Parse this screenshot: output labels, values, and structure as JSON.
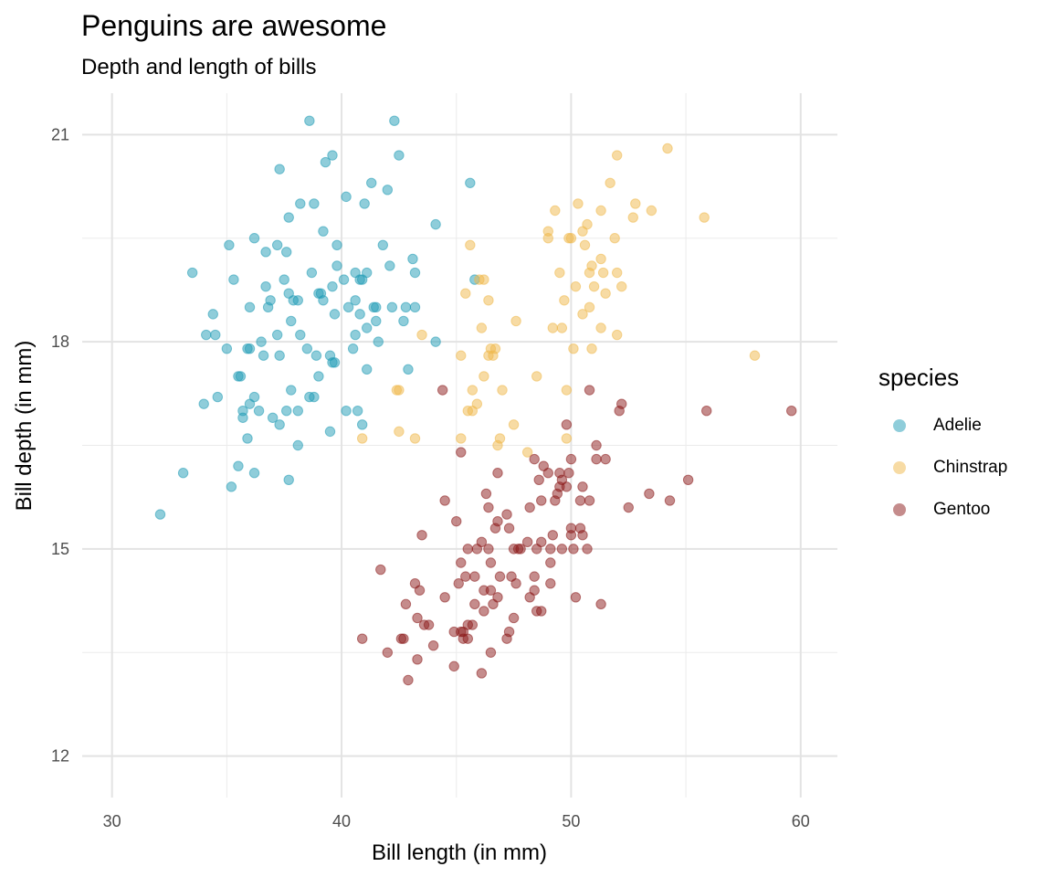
{
  "chart_data": {
    "type": "scatter",
    "title": "Penguins are awesome",
    "subtitle": "Depth and length of bills",
    "xlabel": "Bill length (in mm)",
    "ylabel": "Bill depth (in mm)",
    "xlim": [
      28.7,
      61.6
    ],
    "ylim": [
      11.4,
      21.6
    ],
    "xticks": [
      30,
      40,
      50,
      60
    ],
    "yticks": [
      12,
      15,
      18,
      21
    ],
    "xminor": [
      35,
      45,
      55
    ],
    "yminor": [
      13.5,
      16.5,
      19.5
    ],
    "legend_title": "species",
    "legend_position": "right",
    "series": [
      {
        "name": "Adelie",
        "color": "#1F9BB5",
        "points": [
          [
            32.1,
            15.5
          ],
          [
            33.1,
            16.1
          ],
          [
            33.5,
            19.0
          ],
          [
            34.0,
            17.1
          ],
          [
            34.1,
            18.1
          ],
          [
            34.4,
            18.4
          ],
          [
            34.5,
            18.1
          ],
          [
            34.6,
            17.2
          ],
          [
            35.0,
            17.9
          ],
          [
            35.1,
            19.4
          ],
          [
            35.2,
            15.9
          ],
          [
            35.3,
            18.9
          ],
          [
            35.5,
            17.5
          ],
          [
            35.5,
            16.2
          ],
          [
            35.6,
            17.5
          ],
          [
            35.7,
            17.0
          ],
          [
            35.7,
            16.9
          ],
          [
            35.9,
            16.6
          ],
          [
            35.9,
            17.9
          ],
          [
            36.0,
            18.5
          ],
          [
            36.0,
            17.9
          ],
          [
            36.0,
            17.1
          ],
          [
            36.2,
            17.2
          ],
          [
            36.2,
            16.1
          ],
          [
            36.2,
            19.5
          ],
          [
            36.4,
            17.0
          ],
          [
            36.5,
            18.0
          ],
          [
            36.6,
            17.8
          ],
          [
            36.7,
            18.8
          ],
          [
            36.7,
            19.3
          ],
          [
            36.8,
            18.5
          ],
          [
            36.9,
            18.6
          ],
          [
            37.0,
            16.9
          ],
          [
            37.2,
            18.1
          ],
          [
            37.2,
            19.4
          ],
          [
            37.3,
            20.5
          ],
          [
            37.3,
            17.8
          ],
          [
            37.3,
            16.8
          ],
          [
            37.5,
            18.9
          ],
          [
            37.6,
            19.3
          ],
          [
            37.6,
            17.0
          ],
          [
            37.7,
            18.7
          ],
          [
            37.7,
            16.0
          ],
          [
            37.7,
            19.8
          ],
          [
            37.8,
            18.3
          ],
          [
            37.8,
            17.3
          ],
          [
            37.9,
            18.6
          ],
          [
            38.1,
            18.6
          ],
          [
            38.1,
            17.0
          ],
          [
            38.1,
            16.5
          ],
          [
            38.2,
            18.1
          ],
          [
            38.2,
            20.0
          ],
          [
            38.5,
            17.9
          ],
          [
            38.6,
            21.2
          ],
          [
            38.6,
            17.2
          ],
          [
            38.7,
            19.0
          ],
          [
            38.8,
            20.0
          ],
          [
            38.8,
            17.2
          ],
          [
            38.9,
            17.8
          ],
          [
            39.0,
            17.5
          ],
          [
            39.0,
            18.7
          ],
          [
            39.1,
            18.7
          ],
          [
            39.2,
            19.6
          ],
          [
            39.2,
            18.6
          ],
          [
            39.3,
            20.6
          ],
          [
            39.5,
            16.7
          ],
          [
            39.5,
            17.8
          ],
          [
            39.6,
            17.7
          ],
          [
            39.6,
            18.8
          ],
          [
            39.6,
            20.7
          ],
          [
            39.7,
            17.7
          ],
          [
            39.7,
            18.4
          ],
          [
            39.8,
            19.1
          ],
          [
            40.1,
            18.9
          ],
          [
            40.2,
            17.0
          ],
          [
            40.2,
            20.1
          ],
          [
            40.3,
            18.5
          ],
          [
            40.5,
            17.9
          ],
          [
            40.6,
            18.6
          ],
          [
            40.6,
            19.0
          ],
          [
            40.7,
            17.0
          ],
          [
            40.8,
            18.4
          ],
          [
            40.8,
            18.9
          ],
          [
            40.9,
            16.8
          ],
          [
            40.9,
            18.9
          ],
          [
            41.0,
            20.0
          ],
          [
            41.1,
            17.6
          ],
          [
            41.1,
            18.2
          ],
          [
            41.1,
            19.0
          ],
          [
            41.4,
            18.5
          ],
          [
            41.5,
            18.3
          ],
          [
            41.6,
            18.0
          ],
          [
            41.8,
            19.4
          ],
          [
            42.0,
            20.2
          ],
          [
            42.1,
            19.1
          ],
          [
            42.2,
            18.5
          ],
          [
            42.3,
            21.2
          ],
          [
            42.5,
            20.7
          ],
          [
            42.7,
            18.3
          ],
          [
            42.8,
            18.5
          ],
          [
            42.9,
            17.6
          ],
          [
            43.1,
            19.2
          ],
          [
            43.2,
            19.0
          ],
          [
            43.2,
            18.5
          ],
          [
            44.1,
            18.0
          ],
          [
            44.1,
            19.7
          ],
          [
            45.6,
            20.3
          ],
          [
            45.8,
            18.9
          ],
          [
            41.3,
            20.3
          ],
          [
            39.8,
            19.4
          ],
          [
            41.5,
            18.5
          ],
          [
            40.6,
            18.1
          ]
        ]
      },
      {
        "name": "Chinstrap",
        "color": "#EFB84A",
        "points": [
          [
            40.9,
            16.6
          ],
          [
            42.4,
            17.3
          ],
          [
            42.5,
            17.3
          ],
          [
            42.5,
            16.7
          ],
          [
            43.2,
            16.6
          ],
          [
            43.5,
            18.1
          ],
          [
            45.2,
            17.8
          ],
          [
            45.2,
            16.6
          ],
          [
            45.4,
            18.7
          ],
          [
            45.5,
            17.0
          ],
          [
            45.6,
            19.4
          ],
          [
            45.7,
            17.0
          ],
          [
            45.7,
            17.3
          ],
          [
            45.9,
            17.1
          ],
          [
            46.0,
            18.9
          ],
          [
            46.1,
            18.2
          ],
          [
            46.2,
            17.5
          ],
          [
            46.4,
            17.8
          ],
          [
            46.4,
            18.6
          ],
          [
            46.5,
            17.9
          ],
          [
            46.6,
            17.8
          ],
          [
            46.7,
            17.9
          ],
          [
            46.8,
            16.5
          ],
          [
            46.9,
            16.6
          ],
          [
            47.0,
            17.3
          ],
          [
            47.5,
            16.8
          ],
          [
            47.6,
            18.3
          ],
          [
            48.1,
            16.4
          ],
          [
            48.5,
            17.5
          ],
          [
            49.0,
            19.5
          ],
          [
            49.0,
            19.6
          ],
          [
            49.2,
            18.2
          ],
          [
            49.3,
            19.9
          ],
          [
            49.5,
            19.0
          ],
          [
            49.6,
            18.2
          ],
          [
            49.7,
            18.6
          ],
          [
            49.8,
            17.3
          ],
          [
            49.9,
            19.5
          ],
          [
            50.0,
            19.5
          ],
          [
            50.1,
            17.9
          ],
          [
            50.2,
            18.8
          ],
          [
            50.3,
            20.0
          ],
          [
            50.5,
            18.4
          ],
          [
            50.5,
            19.6
          ],
          [
            50.6,
            19.4
          ],
          [
            50.7,
            19.7
          ],
          [
            50.8,
            18.5
          ],
          [
            50.8,
            19.0
          ],
          [
            50.9,
            17.9
          ],
          [
            50.9,
            19.1
          ],
          [
            51.0,
            18.8
          ],
          [
            51.3,
            19.2
          ],
          [
            51.3,
            19.9
          ],
          [
            51.3,
            18.2
          ],
          [
            51.4,
            19.0
          ],
          [
            51.5,
            18.7
          ],
          [
            51.7,
            20.3
          ],
          [
            51.9,
            19.5
          ],
          [
            52.0,
            18.1
          ],
          [
            52.0,
            19.0
          ],
          [
            52.2,
            18.8
          ],
          [
            52.7,
            19.8
          ],
          [
            52.8,
            20.0
          ],
          [
            53.5,
            19.9
          ],
          [
            54.2,
            20.8
          ],
          [
            55.8,
            19.8
          ],
          [
            58.0,
            17.8
          ],
          [
            46.2,
            18.9
          ],
          [
            52.0,
            20.7
          ],
          [
            49.8,
            16.6
          ]
        ]
      },
      {
        "name": "Gentoo",
        "color": "#8B1A1A",
        "points": [
          [
            40.9,
            13.7
          ],
          [
            41.7,
            14.7
          ],
          [
            42.0,
            13.5
          ],
          [
            42.6,
            13.7
          ],
          [
            42.7,
            13.7
          ],
          [
            42.8,
            14.2
          ],
          [
            42.9,
            13.1
          ],
          [
            43.2,
            14.5
          ],
          [
            43.3,
            13.4
          ],
          [
            43.3,
            14.0
          ],
          [
            43.4,
            14.4
          ],
          [
            43.5,
            15.2
          ],
          [
            43.6,
            13.9
          ],
          [
            43.8,
            13.9
          ],
          [
            44.0,
            13.6
          ],
          [
            44.4,
            17.3
          ],
          [
            44.5,
            14.3
          ],
          [
            44.5,
            15.7
          ],
          [
            44.9,
            13.8
          ],
          [
            44.9,
            13.3
          ],
          [
            45.0,
            15.4
          ],
          [
            45.1,
            14.5
          ],
          [
            45.2,
            13.8
          ],
          [
            45.2,
            14.8
          ],
          [
            45.2,
            16.4
          ],
          [
            45.3,
            13.7
          ],
          [
            45.3,
            13.8
          ],
          [
            45.4,
            14.6
          ],
          [
            45.5,
            13.7
          ],
          [
            45.5,
            13.9
          ],
          [
            45.5,
            15.0
          ],
          [
            45.7,
            13.9
          ],
          [
            45.8,
            14.2
          ],
          [
            45.8,
            14.6
          ],
          [
            46.1,
            13.2
          ],
          [
            46.1,
            15.1
          ],
          [
            46.2,
            14.1
          ],
          [
            46.2,
            14.4
          ],
          [
            46.3,
            15.8
          ],
          [
            46.4,
            15.0
          ],
          [
            46.4,
            15.6
          ],
          [
            46.5,
            13.5
          ],
          [
            46.5,
            14.4
          ],
          [
            46.5,
            14.8
          ],
          [
            46.6,
            14.2
          ],
          [
            46.7,
            15.3
          ],
          [
            46.8,
            14.3
          ],
          [
            46.8,
            15.4
          ],
          [
            46.8,
            16.1
          ],
          [
            47.2,
            13.7
          ],
          [
            47.2,
            15.5
          ],
          [
            47.3,
            15.3
          ],
          [
            47.4,
            14.6
          ],
          [
            47.5,
            14.0
          ],
          [
            47.5,
            15.0
          ],
          [
            47.6,
            14.5
          ],
          [
            47.7,
            15.0
          ],
          [
            47.8,
            15.0
          ],
          [
            48.1,
            15.1
          ],
          [
            48.2,
            14.3
          ],
          [
            48.2,
            15.6
          ],
          [
            48.4,
            14.4
          ],
          [
            48.4,
            14.6
          ],
          [
            48.4,
            16.3
          ],
          [
            48.5,
            14.1
          ],
          [
            48.5,
            15.0
          ],
          [
            48.6,
            16.0
          ],
          [
            48.7,
            14.1
          ],
          [
            48.7,
            15.1
          ],
          [
            48.7,
            15.7
          ],
          [
            48.8,
            16.2
          ],
          [
            49.0,
            16.1
          ],
          [
            49.1,
            14.5
          ],
          [
            49.1,
            14.8
          ],
          [
            49.1,
            15.0
          ],
          [
            49.2,
            15.2
          ],
          [
            49.3,
            15.7
          ],
          [
            49.4,
            15.8
          ],
          [
            49.5,
            15.9
          ],
          [
            49.5,
            16.1
          ],
          [
            49.6,
            15.0
          ],
          [
            49.6,
            16.0
          ],
          [
            49.8,
            15.9
          ],
          [
            49.8,
            16.8
          ],
          [
            49.9,
            16.1
          ],
          [
            50.0,
            15.2
          ],
          [
            50.0,
            15.3
          ],
          [
            50.0,
            16.3
          ],
          [
            50.1,
            15.0
          ],
          [
            50.2,
            14.3
          ],
          [
            50.4,
            15.3
          ],
          [
            50.4,
            15.7
          ],
          [
            50.5,
            15.2
          ],
          [
            50.5,
            15.9
          ],
          [
            50.7,
            15.0
          ],
          [
            50.8,
            15.7
          ],
          [
            50.8,
            17.3
          ],
          [
            51.1,
            16.3
          ],
          [
            51.1,
            16.5
          ],
          [
            51.3,
            14.2
          ],
          [
            51.5,
            16.3
          ],
          [
            52.1,
            17.0
          ],
          [
            52.2,
            17.1
          ],
          [
            52.5,
            15.6
          ],
          [
            53.4,
            15.8
          ],
          [
            54.3,
            15.7
          ],
          [
            55.1,
            16.0
          ],
          [
            55.9,
            17.0
          ],
          [
            59.6,
            17.0
          ],
          [
            47.3,
            13.8
          ],
          [
            46.9,
            14.6
          ],
          [
            45.9,
            15.0
          ]
        ]
      }
    ]
  }
}
